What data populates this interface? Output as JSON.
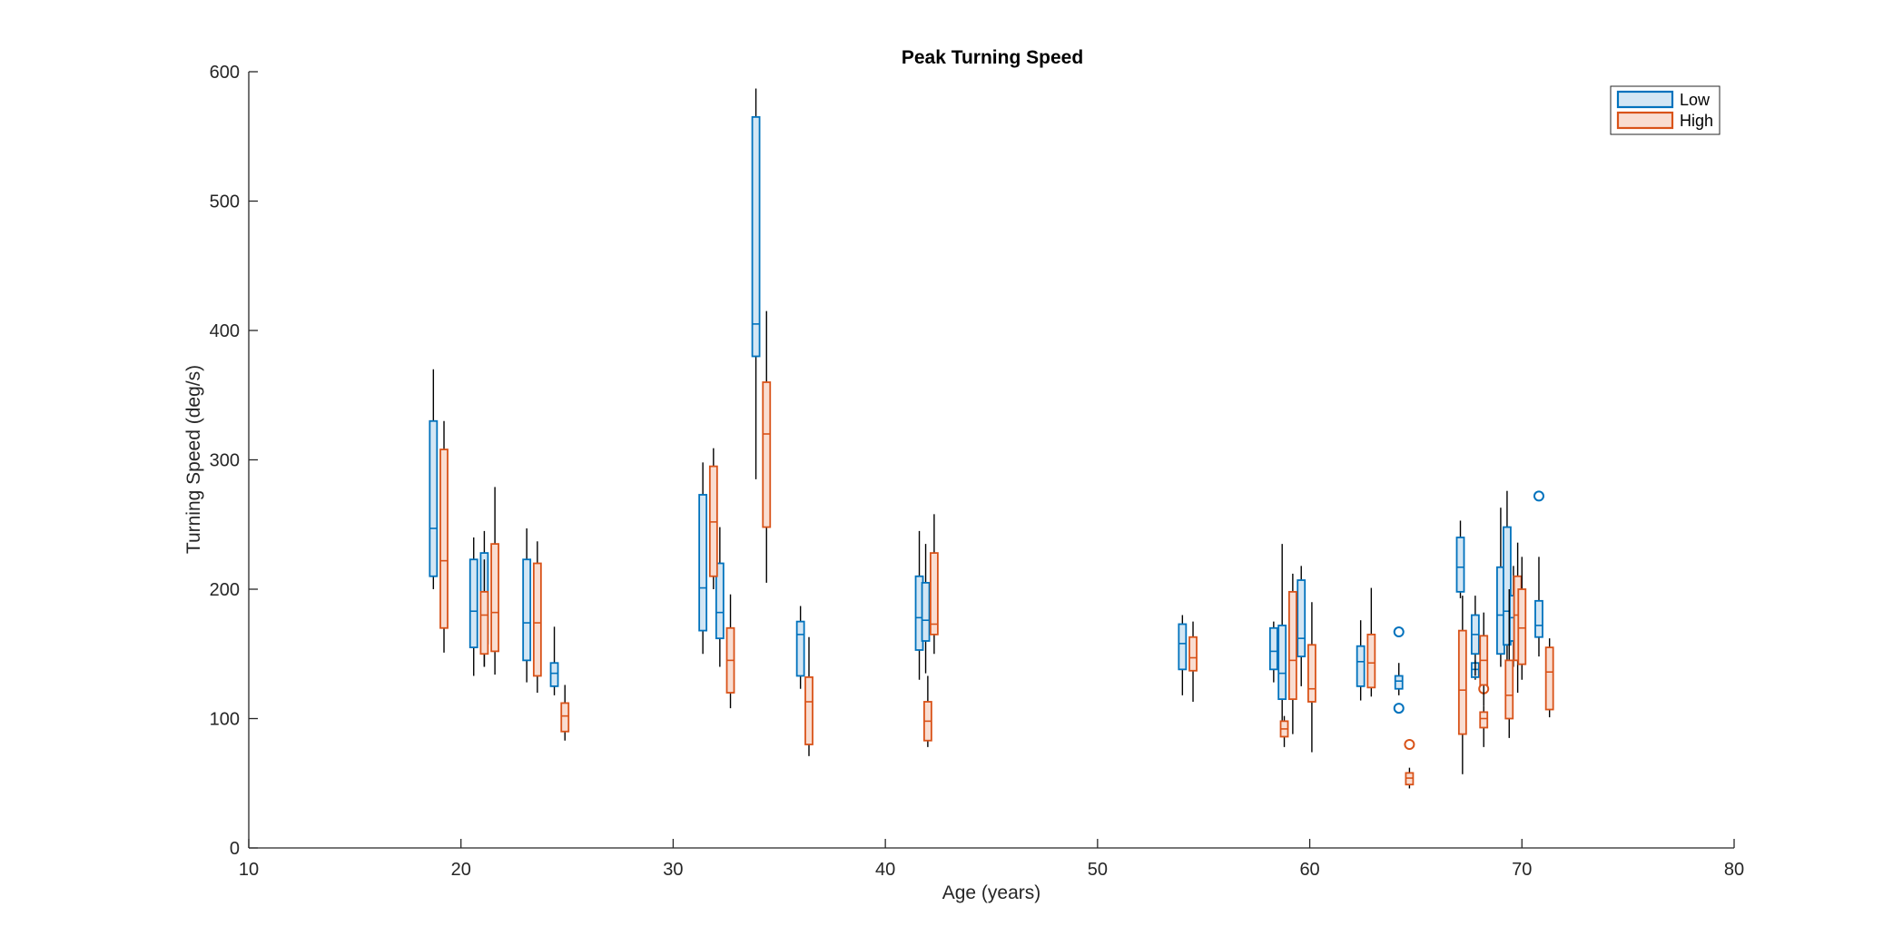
{
  "chart_data": {
    "type": "box",
    "title": "Peak Turning Speed",
    "xlabel": "Age (years)",
    "ylabel": "Turning Speed (deg/s)",
    "xlim": [
      10,
      80
    ],
    "ylim": [
      0,
      600
    ],
    "xticks": [
      10,
      20,
      30,
      40,
      50,
      60,
      70,
      80
    ],
    "yticks": [
      0,
      100,
      200,
      300,
      400,
      500,
      600
    ],
    "grid": false,
    "legend_position": "top-right",
    "series": [
      {
        "name": "Low",
        "edge_color": "#0072BD",
        "fill_color": "#D3E6F4",
        "boxes": [
          {
            "x": 18.7,
            "whisker_low": 200,
            "q1": 210,
            "median": 247,
            "q3": 330,
            "whisker_high": 370
          },
          {
            "x": 20.6,
            "whisker_low": 133,
            "q1": 155,
            "median": 183,
            "q3": 223,
            "whisker_high": 240
          },
          {
            "x": 21.1,
            "whisker_low": 140,
            "q1": 158,
            "median": 185,
            "q3": 228,
            "whisker_high": 245
          },
          {
            "x": 23.1,
            "whisker_low": 128,
            "q1": 145,
            "median": 174,
            "q3": 223,
            "whisker_high": 247
          },
          {
            "x": 24.4,
            "whisker_low": 118,
            "q1": 125,
            "median": 135,
            "q3": 143,
            "whisker_high": 171
          },
          {
            "x": 31.4,
            "whisker_low": 150,
            "q1": 168,
            "median": 201,
            "q3": 273,
            "whisker_high": 298
          },
          {
            "x": 32.2,
            "whisker_low": 140,
            "q1": 162,
            "median": 182,
            "q3": 220,
            "whisker_high": 248
          },
          {
            "x": 33.9,
            "whisker_low": 285,
            "q1": 380,
            "median": 405,
            "q3": 565,
            "whisker_high": 587
          },
          {
            "x": 36.0,
            "whisker_low": 123,
            "q1": 133,
            "median": 165,
            "q3": 175,
            "whisker_high": 187
          },
          {
            "x": 41.6,
            "whisker_low": 130,
            "q1": 153,
            "median": 178,
            "q3": 210,
            "whisker_high": 245
          },
          {
            "x": 41.9,
            "whisker_low": 135,
            "q1": 160,
            "median": 176,
            "q3": 205,
            "whisker_high": 235
          },
          {
            "x": 54.0,
            "whisker_low": 118,
            "q1": 138,
            "median": 158,
            "q3": 173,
            "whisker_high": 180
          },
          {
            "x": 58.3,
            "whisker_low": 128,
            "q1": 138,
            "median": 152,
            "q3": 170,
            "whisker_high": 175
          },
          {
            "x": 58.7,
            "whisker_low": 95,
            "q1": 115,
            "median": 135,
            "q3": 172,
            "whisker_high": 235
          },
          {
            "x": 59.6,
            "whisker_low": 125,
            "q1": 148,
            "median": 162,
            "q3": 207,
            "whisker_high": 218
          },
          {
            "x": 62.4,
            "whisker_low": 114,
            "q1": 125,
            "median": 144,
            "q3": 156,
            "whisker_high": 176
          },
          {
            "x": 64.2,
            "whisker_low": 118,
            "q1": 123,
            "median": 129,
            "q3": 133,
            "whisker_high": 143,
            "outliers": [
              167,
              108
            ]
          },
          {
            "x": 67.1,
            "whisker_low": 193,
            "q1": 198,
            "median": 217,
            "q3": 240,
            "whisker_high": 253
          },
          {
            "x": 67.8,
            "whisker_low": 130,
            "q1": 132,
            "median": 138,
            "q3": 143,
            "whisker_high": 145
          },
          {
            "x": 67.8,
            "whisker_low": 133,
            "q1": 150,
            "median": 165,
            "q3": 180,
            "whisker_high": 195
          },
          {
            "x": 69.0,
            "whisker_low": 140,
            "q1": 150,
            "median": 180,
            "q3": 217,
            "whisker_high": 263
          },
          {
            "x": 69.3,
            "whisker_low": 145,
            "q1": 157,
            "median": 183,
            "q3": 248,
            "whisker_high": 276
          },
          {
            "x": 69.6,
            "whisker_low": 140,
            "q1": 160,
            "median": 178,
            "q3": 195,
            "whisker_high": 218
          },
          {
            "x": 70.8,
            "whisker_low": 148,
            "q1": 163,
            "median": 172,
            "q3": 191,
            "whisker_high": 225,
            "outliers": [
              272
            ]
          }
        ]
      },
      {
        "name": "High",
        "edge_color": "#D95319",
        "fill_color": "#F9DDD1",
        "boxes": [
          {
            "x": 19.2,
            "whisker_low": 151,
            "q1": 170,
            "median": 222,
            "q3": 308,
            "whisker_high": 330
          },
          {
            "x": 21.1,
            "whisker_low": 140,
            "q1": 150,
            "median": 180,
            "q3": 198,
            "whisker_high": 223
          },
          {
            "x": 21.6,
            "whisker_low": 134,
            "q1": 152,
            "median": 182,
            "q3": 235,
            "whisker_high": 279
          },
          {
            "x": 23.6,
            "whisker_low": 120,
            "q1": 133,
            "median": 174,
            "q3": 220,
            "whisker_high": 237
          },
          {
            "x": 24.9,
            "whisker_low": 83,
            "q1": 90,
            "median": 102,
            "q3": 112,
            "whisker_high": 126
          },
          {
            "x": 31.9,
            "whisker_low": 200,
            "q1": 210,
            "median": 252,
            "q3": 295,
            "whisker_high": 309
          },
          {
            "x": 32.7,
            "whisker_low": 108,
            "q1": 120,
            "median": 145,
            "q3": 170,
            "whisker_high": 196
          },
          {
            "x": 34.4,
            "whisker_low": 205,
            "q1": 248,
            "median": 320,
            "q3": 360,
            "whisker_high": 415
          },
          {
            "x": 36.4,
            "whisker_low": 71,
            "q1": 80,
            "median": 113,
            "q3": 132,
            "whisker_high": 163
          },
          {
            "x": 42.0,
            "whisker_low": 78,
            "q1": 83,
            "median": 98,
            "q3": 113,
            "whisker_high": 133
          },
          {
            "x": 42.3,
            "whisker_low": 150,
            "q1": 165,
            "median": 173,
            "q3": 228,
            "whisker_high": 258
          },
          {
            "x": 54.5,
            "whisker_low": 113,
            "q1": 137,
            "median": 147,
            "q3": 163,
            "whisker_high": 175
          },
          {
            "x": 58.8,
            "whisker_low": 78,
            "q1": 86,
            "median": 92,
            "q3": 98,
            "whisker_high": 102
          },
          {
            "x": 59.2,
            "whisker_low": 88,
            "q1": 115,
            "median": 145,
            "q3": 198,
            "whisker_high": 212
          },
          {
            "x": 60.1,
            "whisker_low": 74,
            "q1": 113,
            "median": 123,
            "q3": 157,
            "whisker_high": 190
          },
          {
            "x": 62.9,
            "whisker_low": 117,
            "q1": 124,
            "median": 143,
            "q3": 165,
            "whisker_high": 201
          },
          {
            "x": 64.7,
            "whisker_low": 46,
            "q1": 49,
            "median": 54,
            "q3": 58,
            "whisker_high": 62,
            "outliers": [
              80
            ]
          },
          {
            "x": 67.2,
            "whisker_low": 57,
            "q1": 88,
            "median": 122,
            "q3": 168,
            "whisker_high": 195
          },
          {
            "x": 68.2,
            "whisker_low": 78,
            "q1": 93,
            "median": 100,
            "q3": 105,
            "whisker_high": 110,
            "outliers": [
              123
            ]
          },
          {
            "x": 68.2,
            "whisker_low": 110,
            "q1": 126,
            "median": 145,
            "q3": 164,
            "whisker_high": 182
          },
          {
            "x": 69.4,
            "whisker_low": 85,
            "q1": 100,
            "median": 118,
            "q3": 145,
            "whisker_high": 200
          },
          {
            "x": 69.8,
            "whisker_low": 120,
            "q1": 145,
            "median": 180,
            "q3": 210,
            "whisker_high": 236
          },
          {
            "x": 70.0,
            "whisker_low": 130,
            "q1": 142,
            "median": 170,
            "q3": 200,
            "whisker_high": 225
          },
          {
            "x": 71.3,
            "whisker_low": 101,
            "q1": 107,
            "median": 136,
            "q3": 155,
            "whisker_high": 162
          }
        ]
      }
    ]
  }
}
